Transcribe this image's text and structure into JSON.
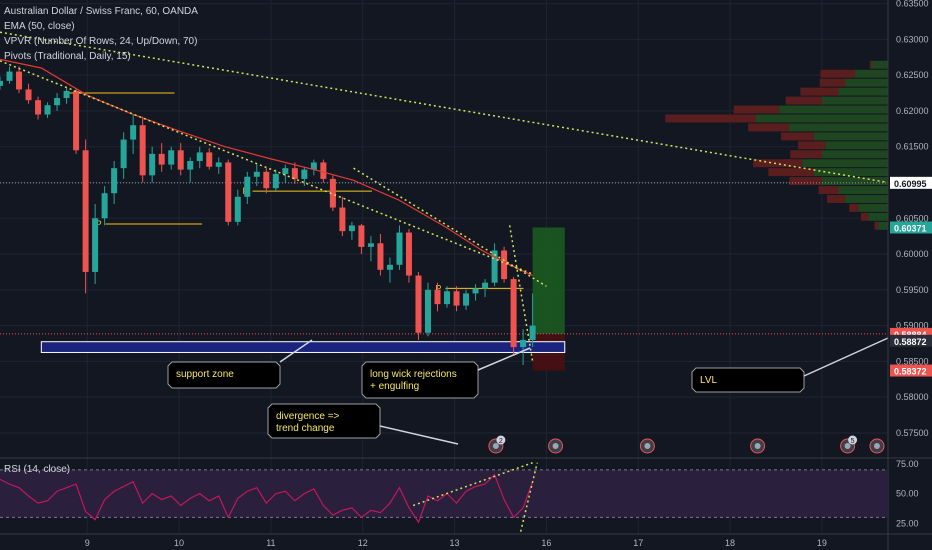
{
  "legend": {
    "symbol": "Australian Dollar / Swiss Franc, 60, OANDA",
    "ema": "EMA (50, close)",
    "vpvr": "VPVR (Number Of Rows, 24, Up/Down, 70)",
    "pivots": "Pivots (Traditional, Daily, 15)",
    "rsi": "RSI (14, close)"
  },
  "colors": {
    "background": "#131722",
    "up": "#26a69a",
    "down": "#ef5350",
    "ema": "#e53935",
    "pivot": "#f5c518",
    "trendline": "#d4e157",
    "support_zone": "#1a237e",
    "support_border": "#ffffff",
    "long_position": "#1b5e20",
    "stop": "#4a0f12",
    "rsi_line": "#c2185b",
    "rsi_band": "#2a1f3d",
    "annotation_bg": "#000000",
    "annotation_text": "#f5e663",
    "vpvr_up": "#1e4620",
    "vpvr_down": "#5a1e1e"
  },
  "chart_data": {
    "type": "candlestick",
    "price_axis": {
      "ylim": [
        0.5715,
        0.6355
      ],
      "ticks": [
        "0.63500",
        "0.63000",
        "0.62500",
        "0.62000",
        "0.61500",
        "0.61000",
        "0.60500",
        "0.60000",
        "0.59500",
        "0.59000",
        "0.58500",
        "0.58000",
        "0.57500"
      ],
      "tick_values": [
        0.635,
        0.63,
        0.625,
        0.62,
        0.615,
        0.61,
        0.605,
        0.6,
        0.595,
        0.59,
        0.585,
        0.58,
        0.575
      ]
    },
    "time_axis": {
      "ticks": [
        "9",
        "10",
        "11",
        "12",
        "13",
        "16",
        "17",
        "18",
        "19"
      ],
      "tick_values": [
        1,
        2,
        3,
        4,
        5,
        6,
        7,
        8,
        9
      ],
      "xlim": [
        0.05,
        9.72
      ]
    },
    "price_labels": [
      {
        "value": 0.60995,
        "text": "0.60995",
        "bg": "#ffffff",
        "fg": "#131722"
      },
      {
        "value": 0.60371,
        "text": "0.60371",
        "bg": "#26a69a",
        "fg": "#ffffff"
      },
      {
        "value": 0.58884,
        "text": "0.58884",
        "bg": "#ef5350",
        "fg": "#ffffff"
      },
      {
        "value": 0.58872,
        "text": "0.58872",
        "bg": "#2a2e39",
        "fg": "#ffffff"
      },
      {
        "value": 0.58372,
        "text": "0.58372",
        "bg": "#ef5350",
        "fg": "#ffffff"
      }
    ],
    "candles_x_start": 0.05,
    "candles_x_end": 5.85,
    "candles": [
      [
        0.6235,
        0.6248,
        0.623,
        0.6242
      ],
      [
        0.6242,
        0.6262,
        0.6238,
        0.6255
      ],
      [
        0.6255,
        0.6262,
        0.6225,
        0.623
      ],
      [
        0.623,
        0.6238,
        0.621,
        0.6215
      ],
      [
        0.6215,
        0.622,
        0.6188,
        0.6195
      ],
      [
        0.6195,
        0.6212,
        0.619,
        0.6208
      ],
      [
        0.6208,
        0.6225,
        0.62,
        0.6218
      ],
      [
        0.6218,
        0.6232,
        0.621,
        0.6228
      ],
      [
        0.6228,
        0.623,
        0.614,
        0.6145
      ],
      [
        0.6145,
        0.616,
        0.5945,
        0.5975
      ],
      [
        0.5975,
        0.607,
        0.5958,
        0.605
      ],
      [
        0.605,
        0.6095,
        0.604,
        0.6085
      ],
      [
        0.6085,
        0.613,
        0.607,
        0.612
      ],
      [
        0.612,
        0.617,
        0.6105,
        0.616
      ],
      [
        0.616,
        0.6195,
        0.614,
        0.618
      ],
      [
        0.618,
        0.6192,
        0.61,
        0.611
      ],
      [
        0.611,
        0.615,
        0.61,
        0.614
      ],
      [
        0.614,
        0.6155,
        0.6115,
        0.6125
      ],
      [
        0.6125,
        0.615,
        0.6118,
        0.6145
      ],
      [
        0.6145,
        0.6155,
        0.611,
        0.6118
      ],
      [
        0.6118,
        0.6135,
        0.61,
        0.613
      ],
      [
        0.613,
        0.615,
        0.612,
        0.6142
      ],
      [
        0.6142,
        0.6148,
        0.6118,
        0.6122
      ],
      [
        0.6122,
        0.6135,
        0.6112,
        0.6128
      ],
      [
        0.6128,
        0.6132,
        0.604,
        0.6045
      ],
      [
        0.6045,
        0.609,
        0.604,
        0.608
      ],
      [
        0.608,
        0.6115,
        0.607,
        0.6108
      ],
      [
        0.6108,
        0.6125,
        0.6095,
        0.6115
      ],
      [
        0.6115,
        0.612,
        0.6085,
        0.6092
      ],
      [
        0.6092,
        0.6118,
        0.6088,
        0.6112
      ],
      [
        0.6112,
        0.6125,
        0.61,
        0.612
      ],
      [
        0.612,
        0.6128,
        0.6098,
        0.6105
      ],
      [
        0.6105,
        0.6122,
        0.6095,
        0.6118
      ],
      [
        0.6118,
        0.6132,
        0.611,
        0.6128
      ],
      [
        0.6128,
        0.6132,
        0.61,
        0.6105
      ],
      [
        0.6105,
        0.611,
        0.606,
        0.6065
      ],
      [
        0.6065,
        0.608,
        0.6025,
        0.6032
      ],
      [
        0.6032,
        0.6045,
        0.602,
        0.604
      ],
      [
        0.604,
        0.6042,
        0.6,
        0.601
      ],
      [
        0.601,
        0.6025,
        0.599,
        0.6015
      ],
      [
        0.6015,
        0.6028,
        0.597,
        0.5978
      ],
      [
        0.5978,
        0.5995,
        0.596,
        0.5985
      ],
      [
        0.5985,
        0.604,
        0.5978,
        0.603
      ],
      [
        0.603,
        0.6035,
        0.596,
        0.597
      ],
      [
        0.597,
        0.5975,
        0.588,
        0.589
      ],
      [
        0.589,
        0.596,
        0.5885,
        0.595
      ],
      [
        0.595,
        0.596,
        0.592,
        0.593
      ],
      [
        0.593,
        0.5955,
        0.5925,
        0.5948
      ],
      [
        0.5948,
        0.5955,
        0.592,
        0.5928
      ],
      [
        0.5928,
        0.595,
        0.5922,
        0.5945
      ],
      [
        0.5945,
        0.5958,
        0.5935,
        0.5952
      ],
      [
        0.5952,
        0.5965,
        0.594,
        0.596
      ],
      [
        0.596,
        0.6015,
        0.5955,
        0.6005
      ],
      [
        0.6005,
        0.601,
        0.596,
        0.5965
      ],
      [
        0.5965,
        0.5968,
        0.586,
        0.587
      ],
      [
        0.587,
        0.5895,
        0.5845,
        0.588
      ],
      [
        0.588,
        0.5945,
        0.587,
        0.59
      ]
    ],
    "ema50": [
      [
        0.05,
        0.6272
      ],
      [
        0.5,
        0.626
      ],
      [
        1.0,
        0.6222
      ],
      [
        1.5,
        0.6195
      ],
      [
        2.0,
        0.6172
      ],
      [
        2.5,
        0.615
      ],
      [
        3.0,
        0.6133
      ],
      [
        3.5,
        0.6117
      ],
      [
        3.9,
        0.6103
      ],
      [
        4.4,
        0.6075
      ],
      [
        4.9,
        0.6038
      ],
      [
        5.3,
        0.6005
      ],
      [
        5.6,
        0.5985
      ],
      [
        5.85,
        0.597
      ]
    ],
    "pivot_lines": [
      {
        "x1": 0.8,
        "x2": 1.95,
        "y": 0.6225,
        "label": ""
      },
      {
        "x1": 1.2,
        "x2": 2.25,
        "y": 0.6042,
        "label": "P"
      },
      {
        "x1": 2.8,
        "x2": 4.1,
        "y": 0.6088,
        "label": "P"
      },
      {
        "x1": 4.9,
        "x2": 5.75,
        "y": 0.5952,
        "label": "P"
      }
    ],
    "trendlines": [
      {
        "p1": [
          0.05,
          0.631
        ],
        "p2": [
          9.72,
          0.61
        ]
      },
      {
        "p1": [
          0.05,
          0.627
        ],
        "p2": [
          5.85,
          0.5972
        ]
      },
      {
        "p1": [
          3.9,
          0.612
        ],
        "p2": [
          6.0,
          0.5955
        ]
      },
      {
        "p1": [
          5.6,
          0.604
        ],
        "p2": [
          5.85,
          0.585
        ]
      }
    ],
    "support_zone": {
      "x1": 0.5,
      "x2": 6.2,
      "y_top": 0.58775,
      "y_bottom": 0.58625
    },
    "long_position": {
      "x1": 5.85,
      "x2": 6.2,
      "entry": 0.58884,
      "target": 0.60371,
      "stop": 0.58372
    },
    "vpvr": {
      "levels_top": 0.627,
      "row_height": 0.00125,
      "rows": [
        {
          "up": 0.1,
          "down": 0.02
        },
        {
          "up": 0.2,
          "down": 0.38
        },
        {
          "up": 0.26,
          "down": 0.28
        },
        {
          "up": 0.3,
          "down": 0.42
        },
        {
          "up": 0.4,
          "down": 0.4
        },
        {
          "up": 0.66,
          "down": 0.5
        },
        {
          "up": 0.8,
          "down": 1.0
        },
        {
          "up": 0.6,
          "down": 0.45
        },
        {
          "up": 0.45,
          "down": 0.36
        },
        {
          "up": 0.38,
          "down": 0.3
        },
        {
          "up": 0.4,
          "down": 0.35
        },
        {
          "up": 0.52,
          "down": 0.54
        },
        {
          "up": 0.45,
          "down": 0.5
        },
        {
          "up": 0.4,
          "down": 0.36
        },
        {
          "up": 0.3,
          "down": 0.22
        },
        {
          "up": 0.26,
          "down": 0.2
        },
        {
          "up": 0.18,
          "down": 0.1
        },
        {
          "up": 0.12,
          "down": 0.08
        },
        {
          "up": 0.06,
          "down": 0.04
        }
      ]
    },
    "rsi": {
      "ylim": [
        16,
        80
      ],
      "ticks": [
        "75.00",
        "50.00",
        "25.00"
      ],
      "tick_values": [
        75,
        50,
        25
      ],
      "band": [
        30,
        70
      ],
      "values": [
        62,
        58,
        55,
        48,
        42,
        44,
        52,
        55,
        58,
        35,
        28,
        45,
        52,
        56,
        60,
        42,
        50,
        45,
        48,
        40,
        46,
        50,
        44,
        48,
        30,
        46,
        52,
        55,
        42,
        50,
        52,
        44,
        50,
        54,
        40,
        32,
        36,
        38,
        30,
        36,
        34,
        42,
        55,
        38,
        26,
        48,
        44,
        50,
        42,
        52,
        56,
        58,
        66,
        45,
        30,
        38,
        60
      ]
    },
    "x_events": [
      {
        "x": 5.45,
        "badge": "2"
      },
      {
        "x": 6.1,
        "badge": ""
      },
      {
        "x": 7.1,
        "badge": ""
      },
      {
        "x": 8.3,
        "badge": ""
      },
      {
        "x": 9.28,
        "badge": "5"
      },
      {
        "x": 9.6,
        "badge": ""
      }
    ]
  },
  "annotations": [
    {
      "id": "support",
      "text": [
        "support zone"
      ]
    },
    {
      "id": "wick",
      "text": [
        "long wick rejections",
        "+ engulfing"
      ]
    },
    {
      "id": "divergence",
      "text": [
        "divergence =>",
        "trend change"
      ]
    },
    {
      "id": "lvl",
      "text": [
        "LVL"
      ]
    }
  ]
}
